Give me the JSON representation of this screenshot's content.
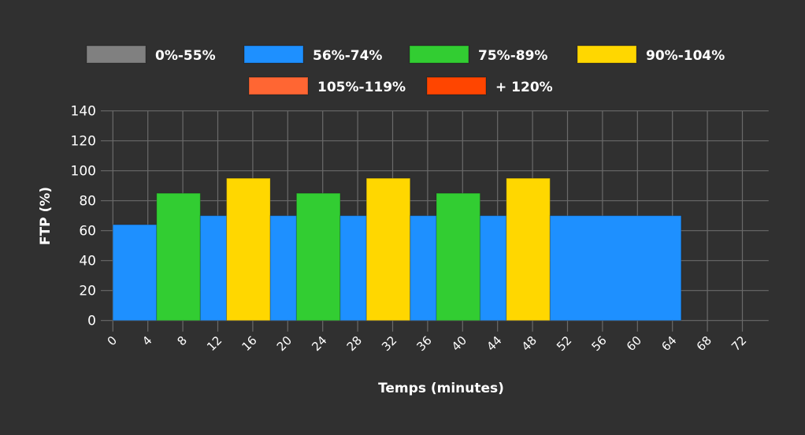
{
  "chart_data": {
    "type": "bar",
    "title": "",
    "xlabel": "Temps (minutes)",
    "ylabel": "FTP (%)",
    "xlim": [
      0,
      75
    ],
    "ylim": [
      0,
      140
    ],
    "grid": true,
    "legend_placement": "top-center",
    "x_ticks": [
      0,
      4,
      8,
      12,
      16,
      20,
      24,
      28,
      32,
      36,
      40,
      44,
      48,
      52,
      56,
      60,
      64,
      68,
      72
    ],
    "y_ticks": [
      0,
      20,
      40,
      60,
      80,
      100,
      120,
      140
    ],
    "legend": [
      {
        "label": "0%-55%",
        "color": "#808080"
      },
      {
        "label": "56%-74%",
        "color": "#1e90ff"
      },
      {
        "label": "75%-89%",
        "color": "#32cd32"
      },
      {
        "label": "90%-104%",
        "color": "#ffd700"
      },
      {
        "label": "105%-119%",
        "color": "#ff6633"
      },
      {
        "label": "+ 120%",
        "color": "#ff4500"
      }
    ],
    "segments": [
      {
        "start": 0,
        "end": 5,
        "value": 64,
        "zone": 1
      },
      {
        "start": 5,
        "end": 10,
        "value": 85,
        "zone": 2
      },
      {
        "start": 10,
        "end": 13,
        "value": 70,
        "zone": 1
      },
      {
        "start": 13,
        "end": 18,
        "value": 95,
        "zone": 3
      },
      {
        "start": 18,
        "end": 21,
        "value": 70,
        "zone": 1
      },
      {
        "start": 21,
        "end": 26,
        "value": 85,
        "zone": 2
      },
      {
        "start": 26,
        "end": 29,
        "value": 70,
        "zone": 1
      },
      {
        "start": 29,
        "end": 34,
        "value": 95,
        "zone": 3
      },
      {
        "start": 34,
        "end": 37,
        "value": 70,
        "zone": 1
      },
      {
        "start": 37,
        "end": 42,
        "value": 85,
        "zone": 2
      },
      {
        "start": 42,
        "end": 45,
        "value": 70,
        "zone": 1
      },
      {
        "start": 45,
        "end": 50,
        "value": 95,
        "zone": 3
      },
      {
        "start": 50,
        "end": 65,
        "value": 70,
        "zone": 1
      }
    ]
  }
}
